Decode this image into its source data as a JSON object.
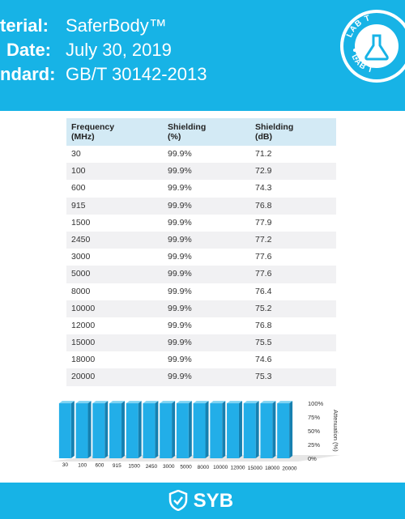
{
  "header": {
    "rows": [
      {
        "label": "terial:",
        "value": "SaferBody™"
      },
      {
        "label": "Date:",
        "value": "July 30, 2019"
      },
      {
        "label": "ndard:",
        "value": "GB/T 30142-2013"
      }
    ],
    "seal_text_top": "LAB T",
    "seal_text_bottom": "LAB T"
  },
  "table": {
    "headers": [
      [
        "Frequency",
        "(MHz)"
      ],
      [
        "Shielding",
        "(%)"
      ],
      [
        "Shielding",
        "(dB)"
      ]
    ],
    "rows": [
      [
        "30",
        "99.9%",
        "71.2"
      ],
      [
        "100",
        "99.9%",
        "72.9"
      ],
      [
        "600",
        "99.9%",
        "74.3"
      ],
      [
        "915",
        "99.9%",
        "76.8"
      ],
      [
        "1500",
        "99.9%",
        "77.9"
      ],
      [
        "2450",
        "99.9%",
        "77.2"
      ],
      [
        "3000",
        "99.9%",
        "77.6"
      ],
      [
        "5000",
        "99.9%",
        "77.6"
      ],
      [
        "8000",
        "99.9%",
        "76.4"
      ],
      [
        "10000",
        "99.9%",
        "75.2"
      ],
      [
        "12000",
        "99.9%",
        "76.8"
      ],
      [
        "15000",
        "99.9%",
        "75.5"
      ],
      [
        "18000",
        "99.9%",
        "74.6"
      ],
      [
        "20000",
        "99.9%",
        "75.3"
      ]
    ]
  },
  "chart_data": {
    "type": "bar",
    "categories": [
      "30",
      "100",
      "600",
      "915",
      "1500",
      "2450",
      "3000",
      "5000",
      "8000",
      "10000",
      "12000",
      "15000",
      "18000",
      "20000"
    ],
    "values": [
      99.9,
      99.9,
      99.9,
      99.9,
      99.9,
      99.9,
      99.9,
      99.9,
      99.9,
      99.9,
      99.9,
      99.9,
      99.9,
      99.9
    ],
    "ylabel": "Attenuation (%)",
    "yticks": [
      "0%",
      "25%",
      "50%",
      "75%",
      "100%"
    ],
    "ylim": [
      0,
      100
    ],
    "bar_color": "#22aee8"
  },
  "footer": {
    "logo_text": "SYB"
  },
  "colors": {
    "brand": "#17b3e6",
    "table_header": "#d3eaf5",
    "row_alt": "#f1f1f3"
  }
}
